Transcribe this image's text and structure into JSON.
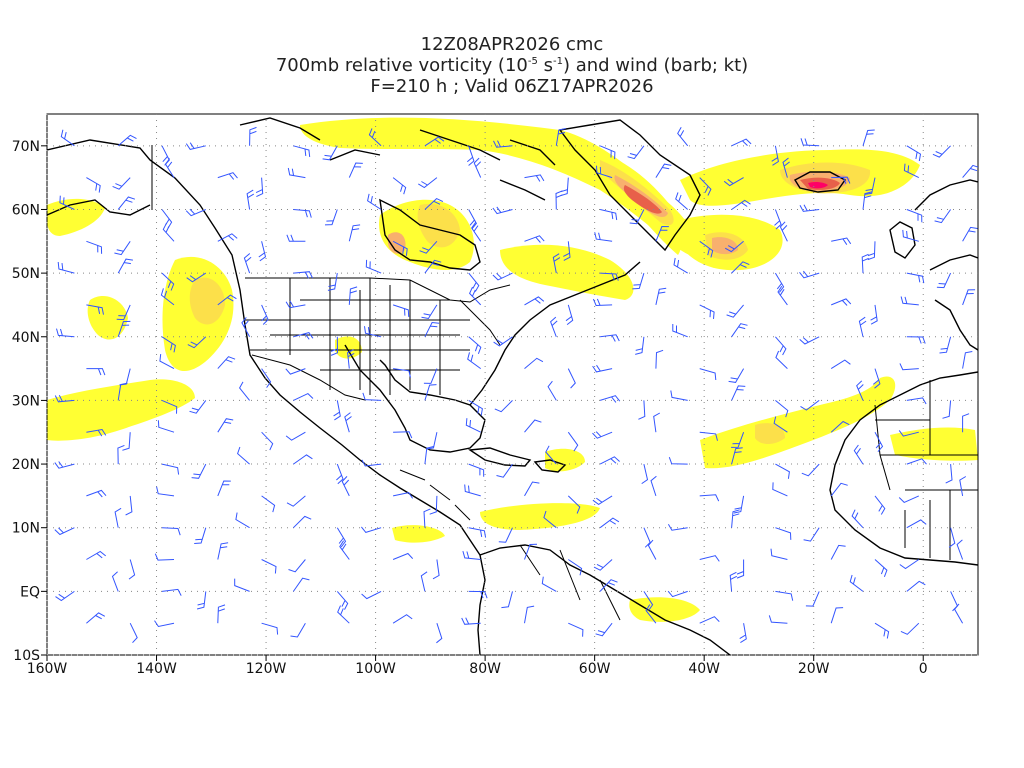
{
  "title": {
    "line1": "12Z08APR2026 cmc",
    "line2_pre": "700mb relative vorticity (10",
    "line2_exp1": "-5",
    "line2_mid": " s",
    "line2_exp2": "-1",
    "line2_post": ") and wind (barb; kt)",
    "line3": "F=210 h ; Valid 06Z17APR2026"
  },
  "axes": {
    "lat_labels": [
      "70N",
      "60N",
      "50N",
      "40N",
      "30N",
      "20N",
      "10N",
      "EQ",
      "10S"
    ],
    "lon_labels": [
      "160W",
      "140W",
      "120W",
      "100W",
      "80W",
      "60W",
      "40W",
      "20W",
      "0"
    ]
  },
  "colors": {
    "level1": "#ffff33",
    "level2": "#fce04a",
    "level3": "#f8b06e",
    "level4": "#e8604a",
    "level5": "#ff0066",
    "wind_barb": "#3355ff",
    "coastline": "#000000",
    "grid": "#888888"
  }
}
